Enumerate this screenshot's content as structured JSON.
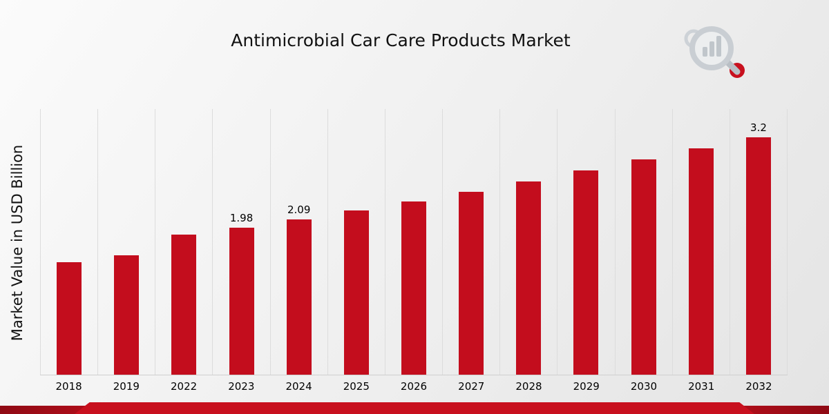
{
  "page": {
    "logo_name": "market-research-logo"
  },
  "chart_data": {
    "type": "bar",
    "title": "Antimicrobial Car Care Products Market",
    "xlabel": "",
    "ylabel": "Market Value in USD Billion",
    "categories": [
      "2018",
      "2019",
      "2022",
      "2023",
      "2024",
      "2025",
      "2026",
      "2027",
      "2028",
      "2029",
      "2030",
      "2031",
      "2032"
    ],
    "values": [
      1.52,
      1.61,
      1.89,
      1.98,
      2.09,
      2.21,
      2.33,
      2.46,
      2.6,
      2.75,
      2.9,
      3.05,
      3.2
    ],
    "data_labels": [
      "",
      "",
      "",
      "1.98",
      "2.09",
      "",
      "",
      "",
      "",
      "",
      "",
      "",
      "3.2"
    ],
    "ylim": [
      0,
      3.58
    ],
    "grid": "vertical",
    "legend": "none",
    "bar_color": "#c30d1d"
  },
  "colors": {
    "bar": "#c30d1d",
    "ribbon_dark": "#ad0d19",
    "ribbon_bright": "#c8101e",
    "gridline": "#dcdcdc",
    "background": "#f0f0f0",
    "logo_gray": "#c9ced3"
  }
}
